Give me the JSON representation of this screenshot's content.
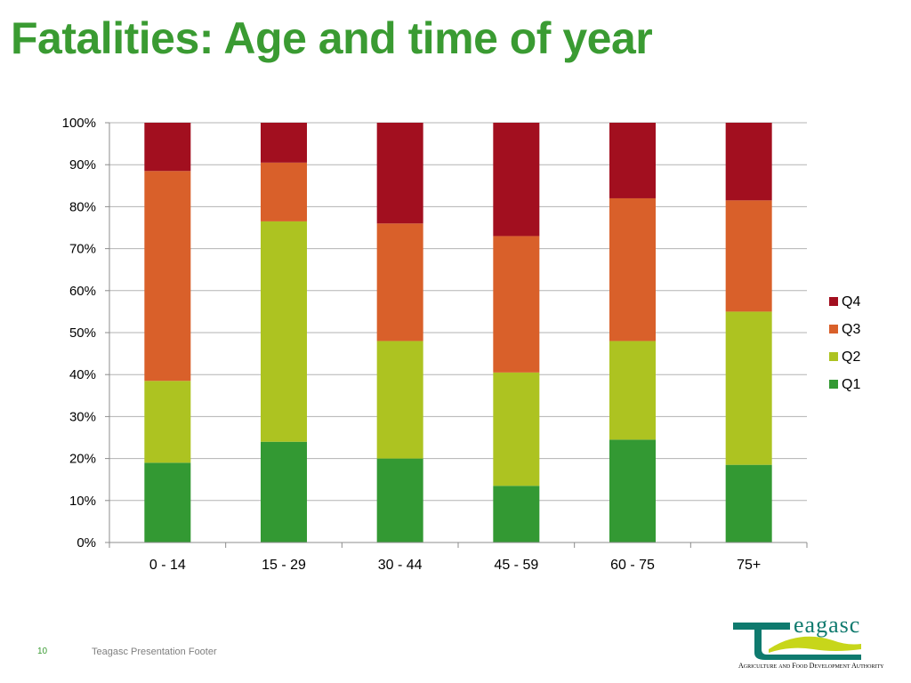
{
  "title": "Fatalities: Age and time of year",
  "footer": {
    "page_number": "10",
    "text": "Teagasc Presentation Footer"
  },
  "logo": {
    "word": "eagasc",
    "tagline": "Agriculture and Food Development Authority"
  },
  "colors": {
    "title": "#3a9b32",
    "Q1": "#339933",
    "Q2": "#adc321",
    "Q3": "#d9602a",
    "Q4": "#a20f1f",
    "grid": "#b3b3b3"
  },
  "chart_data": {
    "type": "bar",
    "stacked": true,
    "categories": [
      "0 - 14",
      "15 - 29",
      "30 - 44",
      "45 - 59",
      "60 - 75",
      "75+"
    ],
    "series": [
      {
        "name": "Q1",
        "values": [
          19,
          24,
          20,
          13.5,
          24.5,
          18.5
        ]
      },
      {
        "name": "Q2",
        "values": [
          19.5,
          52.5,
          28,
          27,
          23.5,
          36.5
        ]
      },
      {
        "name": "Q3",
        "values": [
          50,
          14,
          28,
          32.5,
          34,
          26.5
        ]
      },
      {
        "name": "Q4",
        "values": [
          11.5,
          9.5,
          24,
          27,
          18,
          18.5
        ]
      }
    ],
    "y_ticks": [
      "0%",
      "10%",
      "20%",
      "30%",
      "40%",
      "50%",
      "60%",
      "70%",
      "80%",
      "90%",
      "100%"
    ],
    "ylim": [
      0,
      100
    ],
    "grid": true,
    "legend_position": "right",
    "legend_order": [
      "Q4",
      "Q3",
      "Q2",
      "Q1"
    ]
  }
}
